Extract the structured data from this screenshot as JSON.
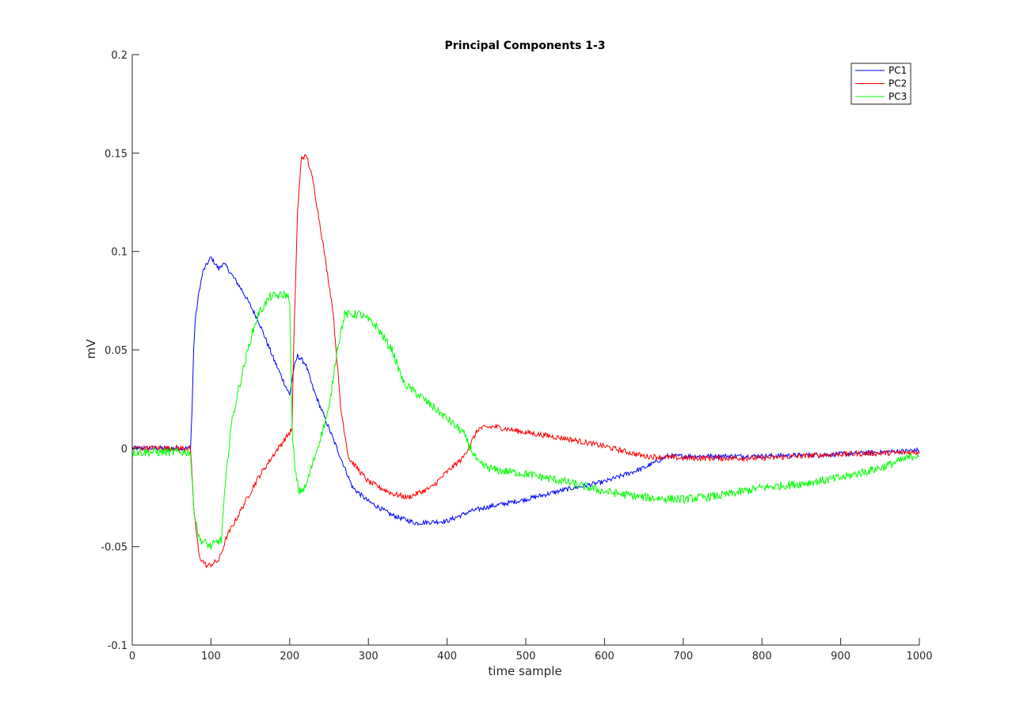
{
  "chart_data": {
    "type": "line",
    "title": "Principal Components 1-3",
    "xlabel": "time sample",
    "ylabel": "mV",
    "xlim": [
      0,
      1000
    ],
    "ylim": [
      -0.1,
      0.2
    ],
    "xticks": [
      0,
      100,
      200,
      300,
      400,
      500,
      600,
      700,
      800,
      900,
      1000
    ],
    "yticks": [
      -0.1,
      -0.05,
      0,
      0.05,
      0.1,
      0.15,
      0.2
    ],
    "xtick_labels": [
      "0",
      "100",
      "200",
      "300",
      "400",
      "500",
      "600",
      "700",
      "800",
      "900",
      "1000"
    ],
    "ytick_labels": [
      "-0.1",
      "-0.05",
      "0",
      "0.05",
      "0.1",
      "0.15",
      "0.2"
    ],
    "legend_position": "top-right",
    "grid": false,
    "series": [
      {
        "name": "PC1",
        "color": "#0000ff",
        "noise": 0.0012,
        "points": [
          [
            0,
            0
          ],
          [
            74,
            0
          ],
          [
            76,
            0.02
          ],
          [
            78,
            0.05
          ],
          [
            80,
            0.065
          ],
          [
            85,
            0.08
          ],
          [
            90,
            0.09
          ],
          [
            100,
            0.097
          ],
          [
            110,
            0.091
          ],
          [
            115,
            0.094
          ],
          [
            120,
            0.092
          ],
          [
            140,
            0.08
          ],
          [
            160,
            0.065
          ],
          [
            180,
            0.045
          ],
          [
            200,
            0.027
          ],
          [
            205,
            0.04
          ],
          [
            210,
            0.047
          ],
          [
            220,
            0.043
          ],
          [
            230,
            0.03
          ],
          [
            250,
            0.01
          ],
          [
            260,
            0.0
          ],
          [
            270,
            -0.01
          ],
          [
            280,
            -0.02
          ],
          [
            300,
            -0.027
          ],
          [
            330,
            -0.034
          ],
          [
            360,
            -0.038
          ],
          [
            400,
            -0.037
          ],
          [
            430,
            -0.032
          ],
          [
            450,
            -0.03
          ],
          [
            500,
            -0.026
          ],
          [
            550,
            -0.021
          ],
          [
            600,
            -0.017
          ],
          [
            650,
            -0.01
          ],
          [
            680,
            -0.004
          ],
          [
            700,
            -0.004
          ],
          [
            800,
            -0.004
          ],
          [
            900,
            -0.003
          ],
          [
            1000,
            -0.001
          ]
        ]
      },
      {
        "name": "PC2",
        "color": "#ff0000",
        "noise": 0.0014,
        "points": [
          [
            0,
            0
          ],
          [
            74,
            0
          ],
          [
            78,
            -0.03
          ],
          [
            85,
            -0.055
          ],
          [
            95,
            -0.06
          ],
          [
            110,
            -0.057
          ],
          [
            120,
            -0.045
          ],
          [
            140,
            -0.03
          ],
          [
            160,
            -0.015
          ],
          [
            180,
            -0.003
          ],
          [
            200,
            0.008
          ],
          [
            203,
            0.01
          ],
          [
            205,
            0.05
          ],
          [
            210,
            0.12
          ],
          [
            215,
            0.148
          ],
          [
            222,
            0.148
          ],
          [
            230,
            0.135
          ],
          [
            240,
            0.11
          ],
          [
            255,
            0.07
          ],
          [
            265,
            0.02
          ],
          [
            275,
            -0.005
          ],
          [
            300,
            -0.017
          ],
          [
            330,
            -0.023
          ],
          [
            350,
            -0.025
          ],
          [
            380,
            -0.02
          ],
          [
            400,
            -0.012
          ],
          [
            420,
            -0.005
          ],
          [
            440,
            0.01
          ],
          [
            460,
            0.011
          ],
          [
            500,
            0.008
          ],
          [
            550,
            0.005
          ],
          [
            600,
            0.001
          ],
          [
            650,
            -0.004
          ],
          [
            700,
            -0.005
          ],
          [
            800,
            -0.005
          ],
          [
            900,
            -0.003
          ],
          [
            1000,
            -0.002
          ]
        ]
      },
      {
        "name": "PC3",
        "color": "#00ff00",
        "noise": 0.0022,
        "points": [
          [
            0,
            -0.002
          ],
          [
            74,
            -0.002
          ],
          [
            78,
            -0.03
          ],
          [
            85,
            -0.046
          ],
          [
            100,
            -0.05
          ],
          [
            110,
            -0.047
          ],
          [
            113,
            -0.047
          ],
          [
            118,
            -0.02
          ],
          [
            125,
            0.01
          ],
          [
            135,
            0.03
          ],
          [
            150,
            0.055
          ],
          [
            160,
            0.068
          ],
          [
            175,
            0.077
          ],
          [
            195,
            0.078
          ],
          [
            200,
            0.076
          ],
          [
            203,
            0.01
          ],
          [
            207,
            -0.012
          ],
          [
            212,
            -0.022
          ],
          [
            220,
            -0.02
          ],
          [
            235,
            0.0
          ],
          [
            250,
            0.02
          ],
          [
            260,
            0.05
          ],
          [
            270,
            0.068
          ],
          [
            290,
            0.068
          ],
          [
            310,
            0.062
          ],
          [
            330,
            0.05
          ],
          [
            345,
            0.033
          ],
          [
            370,
            0.025
          ],
          [
            400,
            0.015
          ],
          [
            420,
            0.008
          ],
          [
            440,
            -0.008
          ],
          [
            460,
            -0.011
          ],
          [
            500,
            -0.013
          ],
          [
            550,
            -0.017
          ],
          [
            600,
            -0.022
          ],
          [
            650,
            -0.025
          ],
          [
            700,
            -0.026
          ],
          [
            750,
            -0.024
          ],
          [
            800,
            -0.02
          ],
          [
            850,
            -0.018
          ],
          [
            900,
            -0.015
          ],
          [
            950,
            -0.01
          ],
          [
            1000,
            -0.003
          ]
        ]
      }
    ]
  }
}
